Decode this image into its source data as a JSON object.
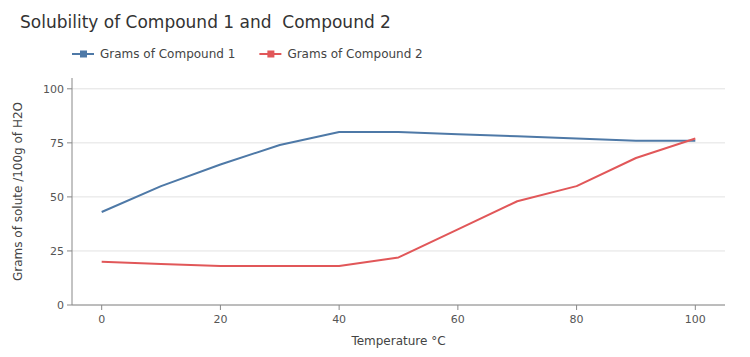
{
  "chart_data": {
    "type": "line",
    "title": "Solubility of Compound 1 and  Compound 2",
    "xlabel": "Temperature °C",
    "ylabel": "Grams of solute /100g of H2O",
    "x": [
      0,
      10,
      20,
      30,
      40,
      50,
      60,
      70,
      80,
      90,
      100
    ],
    "series": [
      {
        "name": "Grams of Compound 1",
        "values": [
          43,
          55,
          65,
          74,
          80,
          80,
          79,
          78,
          77,
          76,
          76
        ]
      },
      {
        "name": "Grams of Compound 2",
        "values": [
          20,
          19,
          18,
          18,
          18,
          22,
          35,
          48,
          55,
          68,
          77
        ]
      }
    ],
    "xlim": [
      -5,
      105
    ],
    "ylim": [
      0,
      105
    ],
    "xticks": [
      0,
      20,
      40,
      60,
      80,
      100
    ],
    "yticks": [
      0,
      25,
      50,
      75,
      100
    ],
    "grid": true,
    "legend": "top"
  }
}
